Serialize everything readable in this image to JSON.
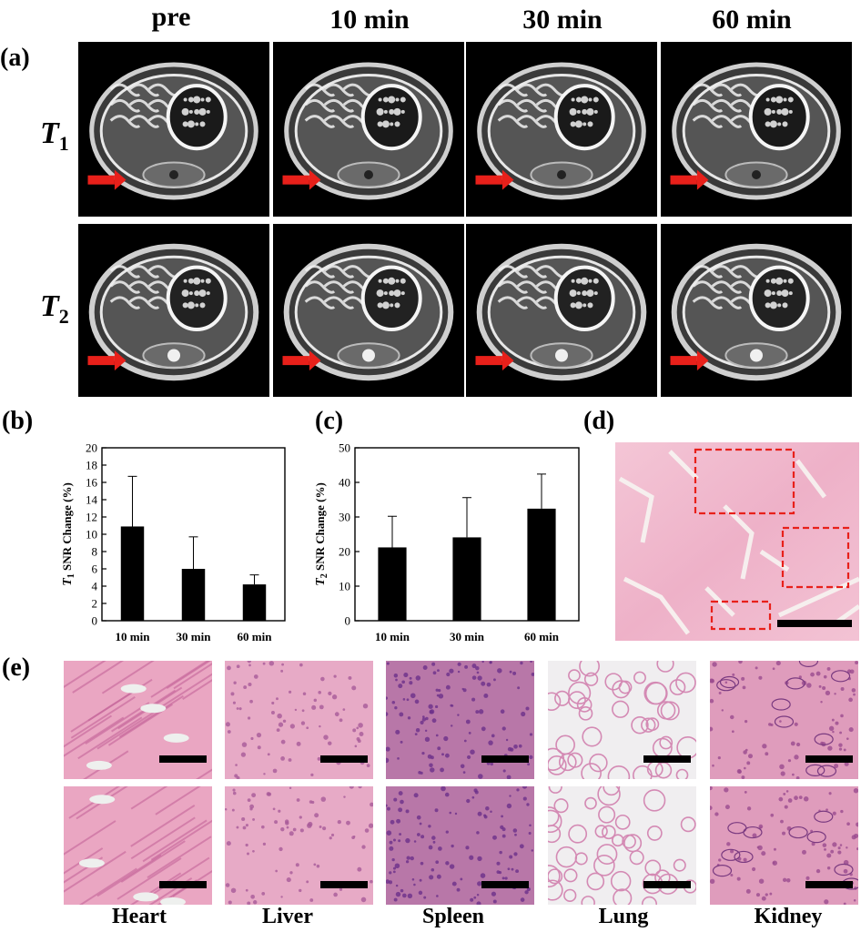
{
  "panel_labels": {
    "a": "(a)",
    "b": "(b)",
    "c": "(c)",
    "d": "(d)",
    "e": "(e)"
  },
  "time_headers": [
    "pre",
    "10 min",
    "30 min",
    "60 min"
  ],
  "row_labels": {
    "t1": {
      "letter": "T",
      "sub": "1"
    },
    "t2": {
      "letter": "T",
      "sub": "2"
    }
  },
  "organs": [
    "Heart",
    "Liver",
    "Spleen",
    "Lung",
    "Kidney"
  ],
  "colors": {
    "arrow": "#e8201a",
    "bar": "#000000",
    "dashed_box": "#e8201a",
    "he_pink": "#f2b8cf",
    "he_purple": "#6b2f8a"
  },
  "chart_data": [
    {
      "type": "bar",
      "panel": "(b)",
      "categories": [
        "10 min",
        "30 min",
        "60 min"
      ],
      "values": [
        10.9,
        6.0,
        4.2
      ],
      "errors": [
        5.8,
        3.7,
        1.1
      ],
      "ylabel_letter": "T",
      "ylabel_sub": "1",
      "ylabel_rest": " SNR Change (%)",
      "ylim": [
        0,
        20
      ],
      "yticks": [
        "0",
        "2",
        "4",
        "6",
        "8",
        "10",
        "12",
        "14",
        "16",
        "18",
        "20"
      ]
    },
    {
      "type": "bar",
      "panel": "(c)",
      "categories": [
        "10 min",
        "30 min",
        "60 min"
      ],
      "values": [
        21.2,
        24.1,
        32.4
      ],
      "errors": [
        9.0,
        11.5,
        10.0
      ],
      "ylabel_letter": "T",
      "ylabel_sub": "2",
      "ylabel_rest": " SNR Change (%)",
      "ylim": [
        0,
        50
      ],
      "yticks": [
        "0",
        "10",
        "20",
        "30",
        "40",
        "50"
      ]
    }
  ]
}
